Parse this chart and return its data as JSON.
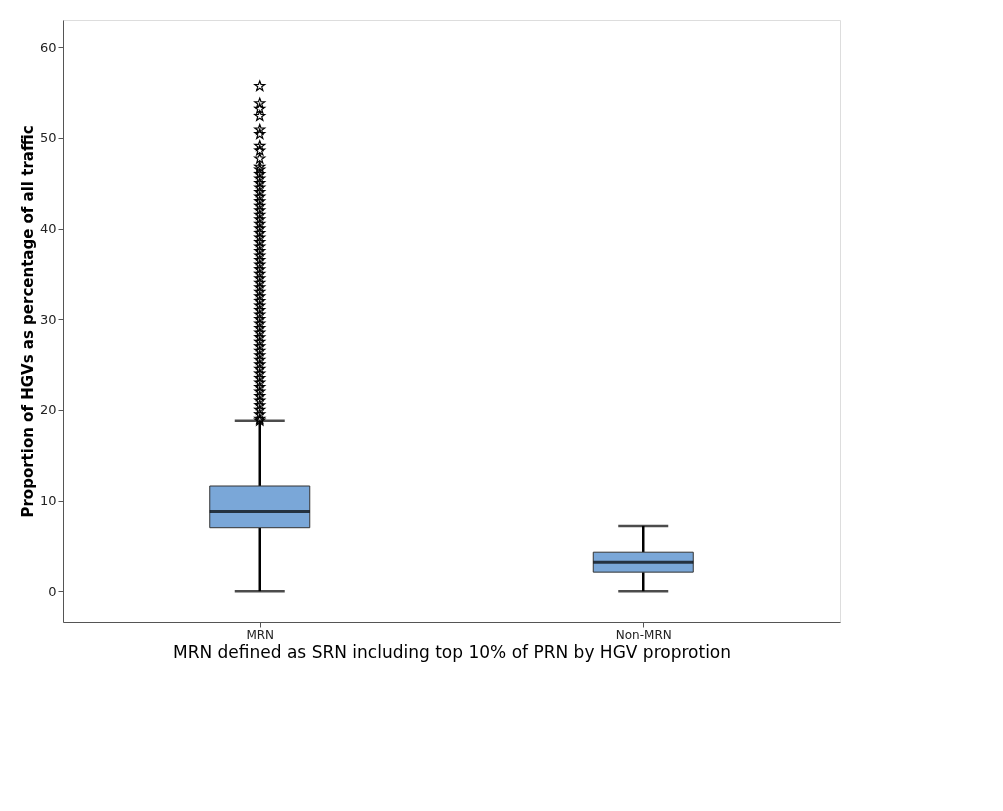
{
  "chart_data": {
    "type": "box",
    "xlabel": "MRN defined as SRN including top 10% of PRN by HGV proprotion",
    "ylabel": "Proportion of HGVs as percentage of all traffic",
    "categories": [
      "MRN",
      "Non-MRN"
    ],
    "series": [
      {
        "color": "#7aa7d8",
        "boxes": [
          {
            "low": 0,
            "q1": 7.0,
            "median": 8.8,
            "q3": 11.6,
            "high": 18.8,
            "outliers": [
              18.8,
              19.0,
              19.5,
              20.0,
              20.5,
              21.0,
              21.5,
              22.0,
              22.5,
              23.0,
              23.5,
              24.0,
              24.5,
              25.0,
              25.5,
              26.0,
              26.5,
              27.0,
              27.5,
              28.0,
              28.5,
              29.0,
              29.5,
              30.0,
              30.5,
              31.0,
              31.5,
              32.0,
              32.5,
              33.0,
              33.5,
              34.0,
              34.5,
              35.0,
              35.5,
              36.0,
              36.5,
              37.0,
              37.5,
              38.0,
              38.5,
              39.0,
              39.5,
              40.0,
              40.5,
              41.0,
              41.5,
              42.0,
              42.5,
              43.0,
              43.5,
              44.0,
              44.5,
              45.0,
              45.5,
              46.0,
              46.5,
              46.8,
              47.7,
              48.6,
              49.1,
              50.4,
              50.9,
              52.4,
              53.2,
              53.8,
              55.7
            ]
          },
          {
            "low": 0,
            "q1": 2.1,
            "median": 3.2,
            "q3": 4.3,
            "high": 7.2
          }
        ]
      }
    ],
    "ylim": [
      -3.4,
      63
    ],
    "yticks": [
      0,
      10,
      20,
      30,
      40,
      50,
      60
    ],
    "grid": false,
    "marker": "star"
  }
}
